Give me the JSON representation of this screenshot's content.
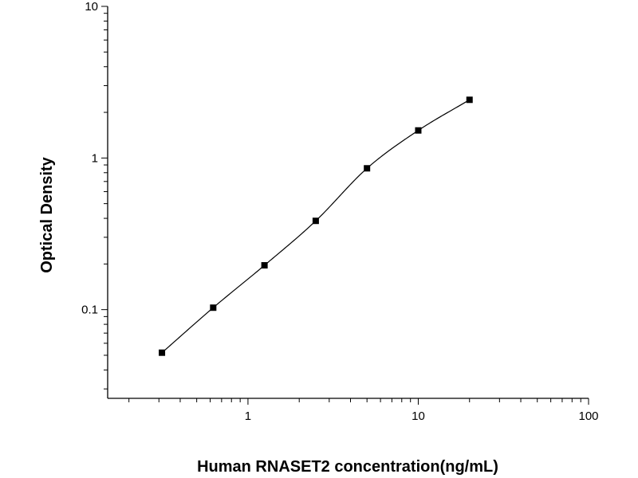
{
  "chart_data": {
    "type": "scatter",
    "title": "",
    "xlabel": "Human RNASET2 concentration(ng/mL)",
    "ylabel": "Optical Density",
    "xscale": "log",
    "yscale": "log",
    "xlim": [
      0.15,
      100
    ],
    "ylim": [
      0.026,
      10
    ],
    "x_ticks": [
      1,
      10,
      100
    ],
    "x_tick_labels": [
      "1",
      "10",
      "100"
    ],
    "y_ticks": [
      0.1,
      1,
      10
    ],
    "y_tick_labels": [
      "0.1",
      "1",
      "10"
    ],
    "grid": false,
    "legend": "none",
    "fit_curve": true,
    "marker": "square",
    "colors": {
      "marker": "#000000",
      "line": "#000000",
      "axis": "#000000"
    },
    "series": [
      {
        "x": [
          0.3125,
          0.625,
          1.25,
          2.5,
          5,
          10,
          20
        ],
        "y": [
          0.052,
          0.103,
          0.196,
          0.385,
          0.855,
          1.52,
          2.42
        ]
      }
    ]
  }
}
